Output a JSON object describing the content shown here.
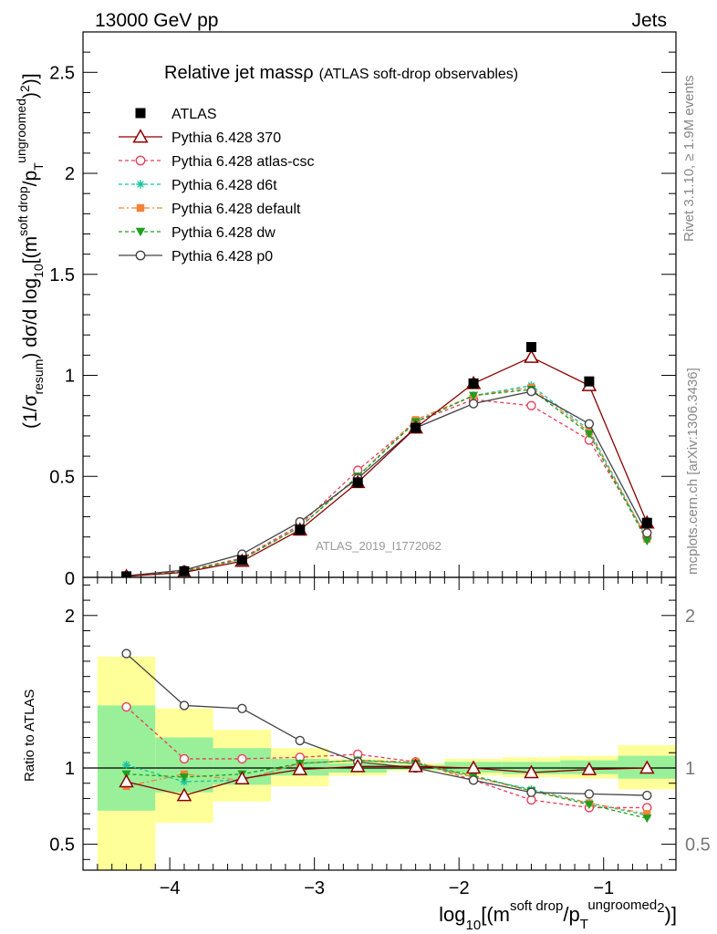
{
  "header": {
    "left": "13000 GeV pp",
    "right": "Jets"
  },
  "side_labels": {
    "rivet": "Rivet 3.1.10, ≥ 1.9M events",
    "mcplots": "mcplots.cern.ch [arXiv:1306.3436]"
  },
  "chart_data": {
    "type": "line",
    "title": "Relative jet mass",
    "title_symbol": "ρ",
    "subtitle": "(ATLAS soft-drop observables)",
    "analysis": "ATLAS_2019_I1772062",
    "xlabel": {
      "pre": "log",
      "sub10": "10",
      "mid": "[(m",
      "sup1": "soft drop",
      "mid2": "/p",
      "subT": "T",
      "sup2": "ungroomed",
      "end": ")",
      "sup3": "2",
      "end2": "]"
    },
    "ylabel_main": {
      "p1": "(1/σ",
      "sub1": "resum",
      "p2": ") dσ/d log",
      "sub2": "10",
      "p3": "[(m",
      "sup1": "soft drop",
      "p4": "/p",
      "sub3": "T",
      "sup2": "ungroomed",
      "p5": ")",
      "sup3": "2",
      "p6": ")]"
    },
    "ylabel_ratio": "Ratio to ATLAS",
    "xlim": [
      -4.6,
      -0.5
    ],
    "ylim_main": [
      0,
      2.7
    ],
    "ylim_ratio": [
      0.33,
      2.25
    ],
    "xticks": [
      -4,
      -3,
      -2,
      -1
    ],
    "xtick_labels": [
      "−4",
      "−3",
      "−2",
      "−1"
    ],
    "yticks_main": [
      0.5,
      1,
      1.5,
      2,
      2.5
    ],
    "ytick_labels_main": [
      "0.5",
      "1",
      "1.5",
      "2",
      "2.5"
    ],
    "main_zero_label": "0",
    "yticks_ratio": [
      0.5,
      1,
      2
    ],
    "ytick_labels_ratio": [
      "0.5",
      "1",
      "2"
    ],
    "x": [
      -4.3,
      -3.9,
      -3.5,
      -3.1,
      -2.7,
      -2.3,
      -1.9,
      -1.5,
      -1.1,
      -0.7
    ],
    "bin_edges": [
      -4.5,
      -4.1,
      -3.7,
      -3.3,
      -2.9,
      -2.5,
      -2.1,
      -1.7,
      -1.3,
      -0.9,
      -0.5
    ],
    "band_yellow": [
      [
        0.33,
        1.73
      ],
      [
        0.64,
        1.39
      ],
      [
        0.78,
        1.25
      ],
      [
        0.88,
        1.13
      ],
      [
        0.95,
        1.06
      ],
      [
        0.98,
        1.03
      ],
      [
        0.95,
        1.06
      ],
      [
        0.94,
        1.07
      ],
      [
        0.93,
        1.08
      ],
      [
        0.86,
        1.15
      ]
    ],
    "band_green": [
      [
        0.72,
        1.41
      ],
      [
        0.84,
        1.2
      ],
      [
        0.89,
        1.13
      ],
      [
        0.95,
        1.06
      ],
      [
        0.97,
        1.03
      ],
      [
        0.99,
        1.02
      ],
      [
        0.97,
        1.04
      ],
      [
        0.96,
        1.04
      ],
      [
        0.96,
        1.05
      ],
      [
        0.93,
        1.08
      ]
    ],
    "series": [
      {
        "name": "ATLAS",
        "color": "#000000",
        "marker": "square",
        "dash": "",
        "values": [
          0.005,
          0.03,
          0.085,
          0.235,
          0.47,
          0.74,
          0.96,
          1.14,
          0.97,
          0.27
        ],
        "ratio": [
          1,
          1,
          1,
          1,
          1,
          1,
          1,
          1,
          1,
          1
        ]
      },
      {
        "name": "Pythia 6.428 370",
        "color": "#8b0000",
        "marker": "triangle-open",
        "dash": "",
        "values": [
          0.005,
          0.025,
          0.08,
          0.235,
          0.47,
          0.74,
          0.96,
          1.09,
          0.95,
          0.27
        ],
        "ratio": [
          0.91,
          0.82,
          0.93,
          0.99,
          1.01,
          1.01,
          1.0,
          0.97,
          0.99,
          1.0
        ]
      },
      {
        "name": "Pythia 6.428 atlas-csc",
        "color": "#e83e5a",
        "marker": "circle-open",
        "dash": "4,3",
        "values": [
          0.006,
          0.032,
          0.095,
          0.26,
          0.53,
          0.77,
          0.88,
          0.85,
          0.68,
          0.2
        ],
        "ratio": [
          1.4,
          1.06,
          1.06,
          1.07,
          1.09,
          1.04,
          0.92,
          0.79,
          0.74,
          0.74
        ]
      },
      {
        "name": "Pythia 6.428 d6t",
        "color": "#17c4a0",
        "marker": "star",
        "dash": "4,3",
        "values": [
          0.005,
          0.028,
          0.09,
          0.25,
          0.5,
          0.77,
          0.9,
          0.95,
          0.73,
          0.19
        ],
        "ratio": [
          1.02,
          0.91,
          0.92,
          1.03,
          1.05,
          1.03,
          0.94,
          0.86,
          0.77,
          0.69
        ]
      },
      {
        "name": "Pythia 6.428 default",
        "color": "#f2823a",
        "marker": "square-filled",
        "dash": "6,3,2,3",
        "values": [
          0.005,
          0.03,
          0.09,
          0.25,
          0.5,
          0.78,
          0.9,
          0.94,
          0.72,
          0.19
        ],
        "ratio": [
          0.88,
          0.96,
          0.92,
          1.03,
          1.05,
          1.04,
          0.94,
          0.85,
          0.77,
          0.7
        ]
      },
      {
        "name": "Pythia 6.428 dw",
        "color": "#1ea01e",
        "marker": "triangle-down",
        "dash": "4,3",
        "values": [
          0.005,
          0.03,
          0.09,
          0.25,
          0.5,
          0.77,
          0.9,
          0.93,
          0.71,
          0.18
        ],
        "ratio": [
          0.96,
          0.94,
          0.96,
          1.03,
          1.05,
          1.03,
          0.95,
          0.85,
          0.76,
          0.67
        ]
      },
      {
        "name": "Pythia 6.428 p0",
        "color": "#444444",
        "marker": "circle-open",
        "dash": "",
        "values": [
          0.008,
          0.036,
          0.115,
          0.275,
          0.49,
          0.74,
          0.86,
          0.92,
          0.76,
          0.22
        ],
        "ratio": [
          1.75,
          1.41,
          1.39,
          1.18,
          1.04,
          1.0,
          0.92,
          0.84,
          0.83,
          0.82
        ]
      }
    ]
  }
}
